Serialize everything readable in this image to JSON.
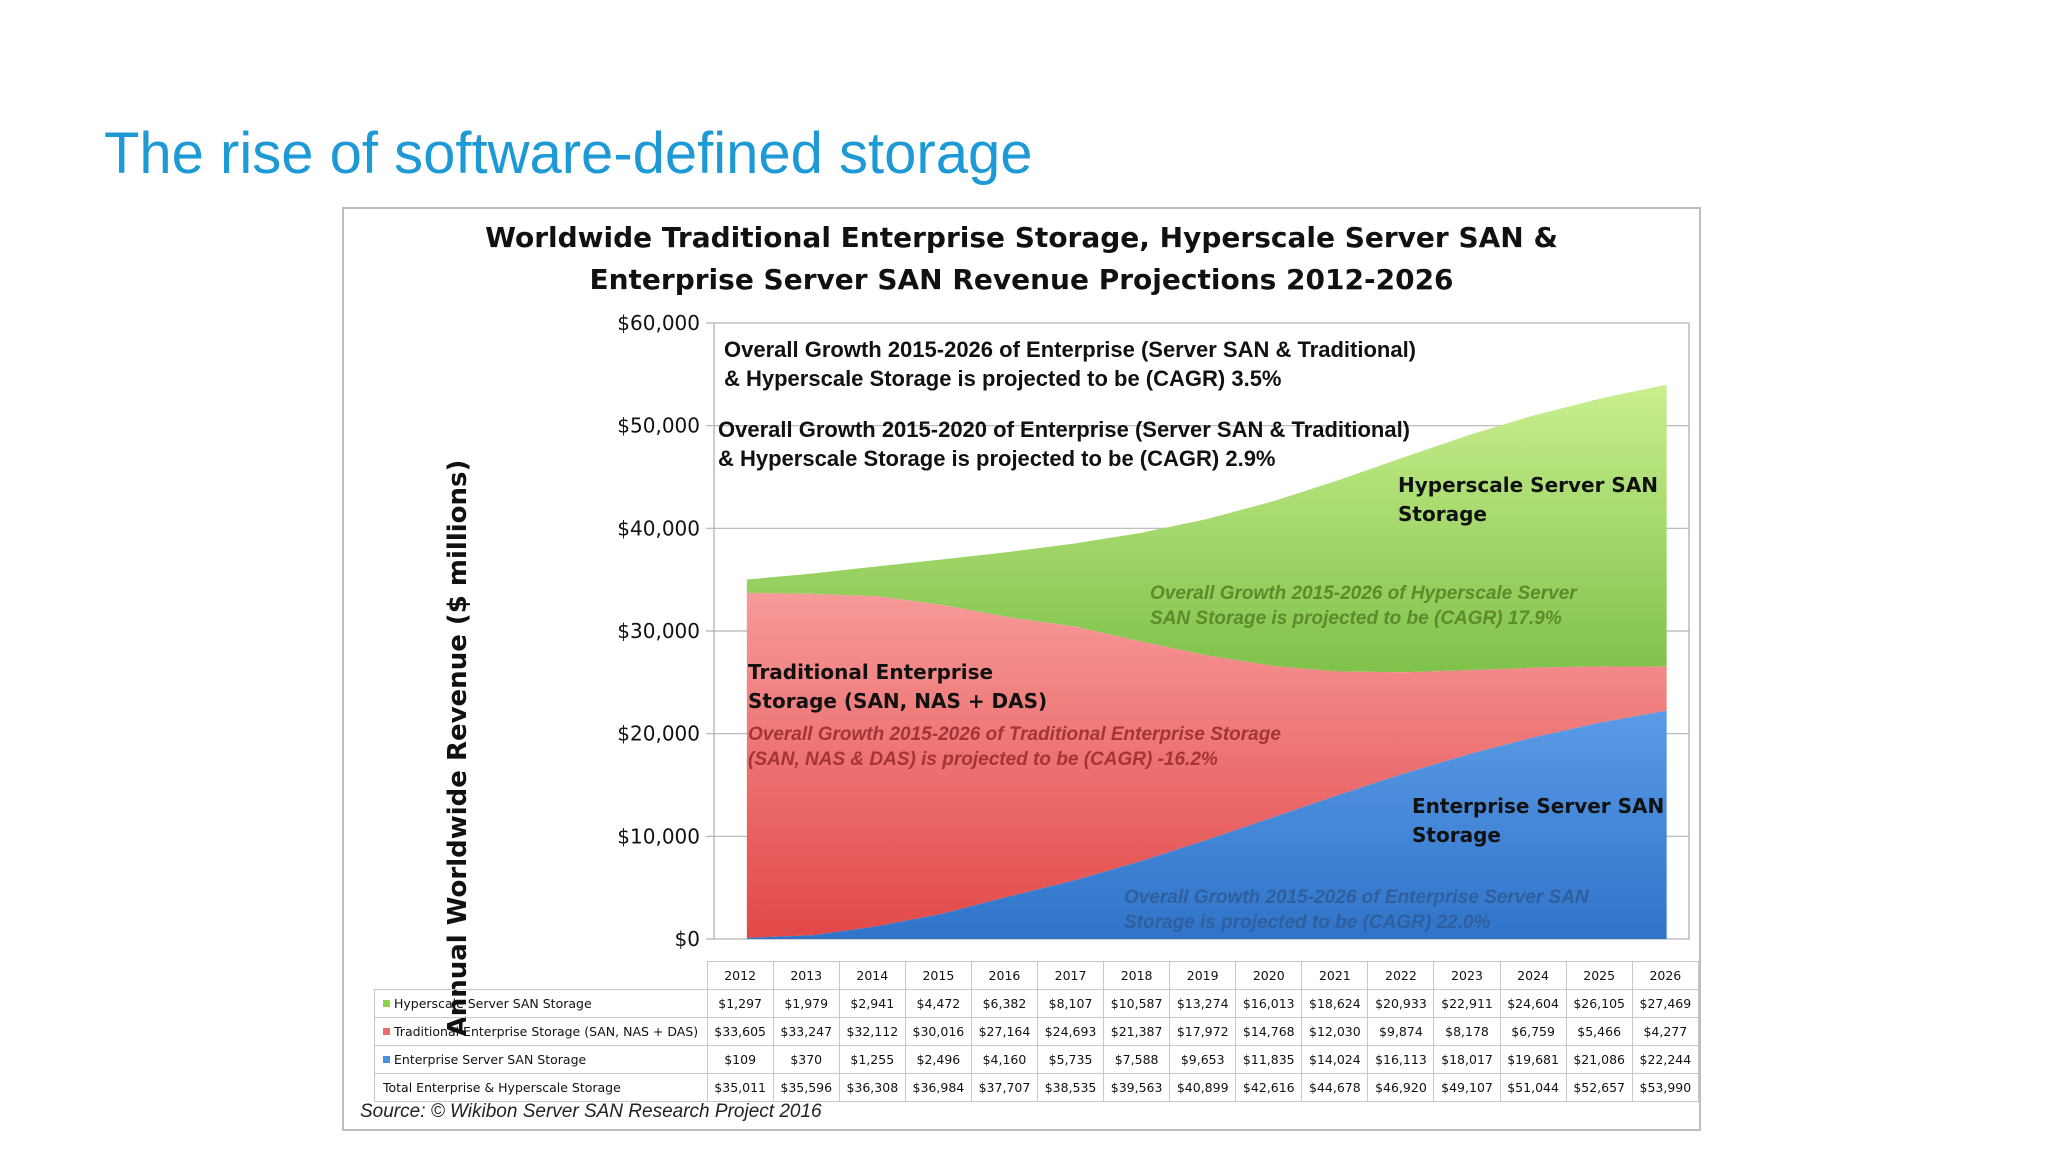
{
  "slide": {
    "title": "The rise of software-defined storage"
  },
  "colors": {
    "hyperscale": "#92d050",
    "traditional": "#f26b6b",
    "enterprise_server_san": "#4a90e2",
    "title_blue": "#1d9ad6"
  },
  "annotations": {
    "overall_2026": [
      "Overall Growth 2015-2026 of Enterprise (Server SAN & Traditional)",
      "& Hyperscale Storage is projected to be (CAGR) 3.5%"
    ],
    "overall_2020": [
      "Overall Growth 2015-2020 of Enterprise (Server SAN & Traditional)",
      "& Hyperscale Storage is projected to be (CAGR) 2.9%"
    ],
    "hyperscale_label": [
      "Hyperscale Server SAN",
      "Storage"
    ],
    "hyperscale_growth": [
      "Overall Growth 2015-2026 of Hyperscale Server",
      "SAN Storage is projected to be (CAGR) 17.9%"
    ],
    "traditional_label": [
      "Traditional Enterprise",
      "Storage (SAN, NAS + DAS)"
    ],
    "traditional_growth": [
      "Overall Growth 2015-2026 of Traditional Enterprise Storage",
      "(SAN, NAS & DAS) is projected to be (CAGR) -16.2%"
    ],
    "ess_label": [
      "Enterprise Server SAN",
      "Storage"
    ],
    "ess_growth": [
      "Overall Growth 2015-2026 of Enterprise Server SAN",
      "Storage is projected to be (CAGR) 22.0%"
    ]
  },
  "chart_data": {
    "type": "area",
    "stacked": true,
    "title": "Worldwide Traditional Enterprise Storage, Hyperscale Server SAN & Enterprise Server SAN Revenue Projections 2012-2026",
    "title_lines": [
      "Worldwide Traditional Enterprise Storage, Hyperscale Server SAN &",
      "Enterprise Server SAN Revenue Projections 2012-2026"
    ],
    "ylabel": "Annual Worldwide Revenue ($ millions)",
    "xlabel": "",
    "ylim": [
      0,
      60000
    ],
    "yticks": [
      0,
      10000,
      20000,
      30000,
      40000,
      50000,
      60000
    ],
    "ytick_labels": [
      "$0",
      "$10,000",
      "$20,000",
      "$30,000",
      "$40,000",
      "$50,000",
      "$60,000"
    ],
    "grid": true,
    "categories": [
      "2012",
      "2013",
      "2014",
      "2015",
      "2016",
      "2017",
      "2018",
      "2019",
      "2020",
      "2021",
      "2022",
      "2023",
      "2024",
      "2025",
      "2026"
    ],
    "series": [
      {
        "name": "Enterprise Server SAN Storage",
        "values": [
          109,
          370,
          1255,
          2496,
          4160,
          5735,
          7588,
          9653,
          11835,
          14024,
          16113,
          18017,
          19681,
          21086,
          22244
        ],
        "labels": [
          "$109",
          "$370",
          "$1,255",
          "$2,496",
          "$4,160",
          "$5,735",
          "$7,588",
          "$9,653",
          "$11,835",
          "$14,024",
          "$16,113",
          "$18,017",
          "$19,681",
          "$21,086",
          "$22,244"
        ]
      },
      {
        "name": "Traditional Enterprise Storage (SAN, NAS + DAS)",
        "values": [
          33605,
          33247,
          32112,
          30016,
          27164,
          24693,
          21387,
          17972,
          14768,
          12030,
          9874,
          8178,
          6759,
          5466,
          4277
        ],
        "labels": [
          "$33,605",
          "$33,247",
          "$32,112",
          "$30,016",
          "$27,164",
          "$24,693",
          "$21,387",
          "$17,972",
          "$14,768",
          "$12,030",
          "$9,874",
          "$8,178",
          "$6,759",
          "$5,466",
          "$4,277"
        ]
      },
      {
        "name": "Hyperscale Server SAN Storage",
        "values": [
          1297,
          1979,
          2941,
          4472,
          6382,
          8107,
          10587,
          13274,
          16013,
          18624,
          20933,
          22911,
          24604,
          26105,
          27469
        ],
        "labels": [
          "$1,297",
          "$1,979",
          "$2,941",
          "$4,472",
          "$6,382",
          "$8,107",
          "$10,587",
          "$13,274",
          "$16,013",
          "$18,624",
          "$20,933",
          "$22,911",
          "$24,604",
          "$26,105",
          "$27,469"
        ]
      }
    ],
    "total": {
      "name": "Total Enterprise & Hyperscale Storage",
      "values": [
        35011,
        35596,
        36308,
        36984,
        37707,
        38535,
        39563,
        40899,
        42616,
        44678,
        46920,
        49107,
        51044,
        52657,
        53990
      ],
      "labels": [
        "$35,011",
        "$35,596",
        "$36,308",
        "$36,984",
        "$37,707",
        "$38,535",
        "$39,563",
        "$40,899",
        "$42,616",
        "$44,678",
        "$46,920",
        "$49,107",
        "$51,044",
        "$52,657",
        "$53,990"
      ]
    },
    "source": "Source: © Wikibon Server SAN Research Project 2016"
  }
}
